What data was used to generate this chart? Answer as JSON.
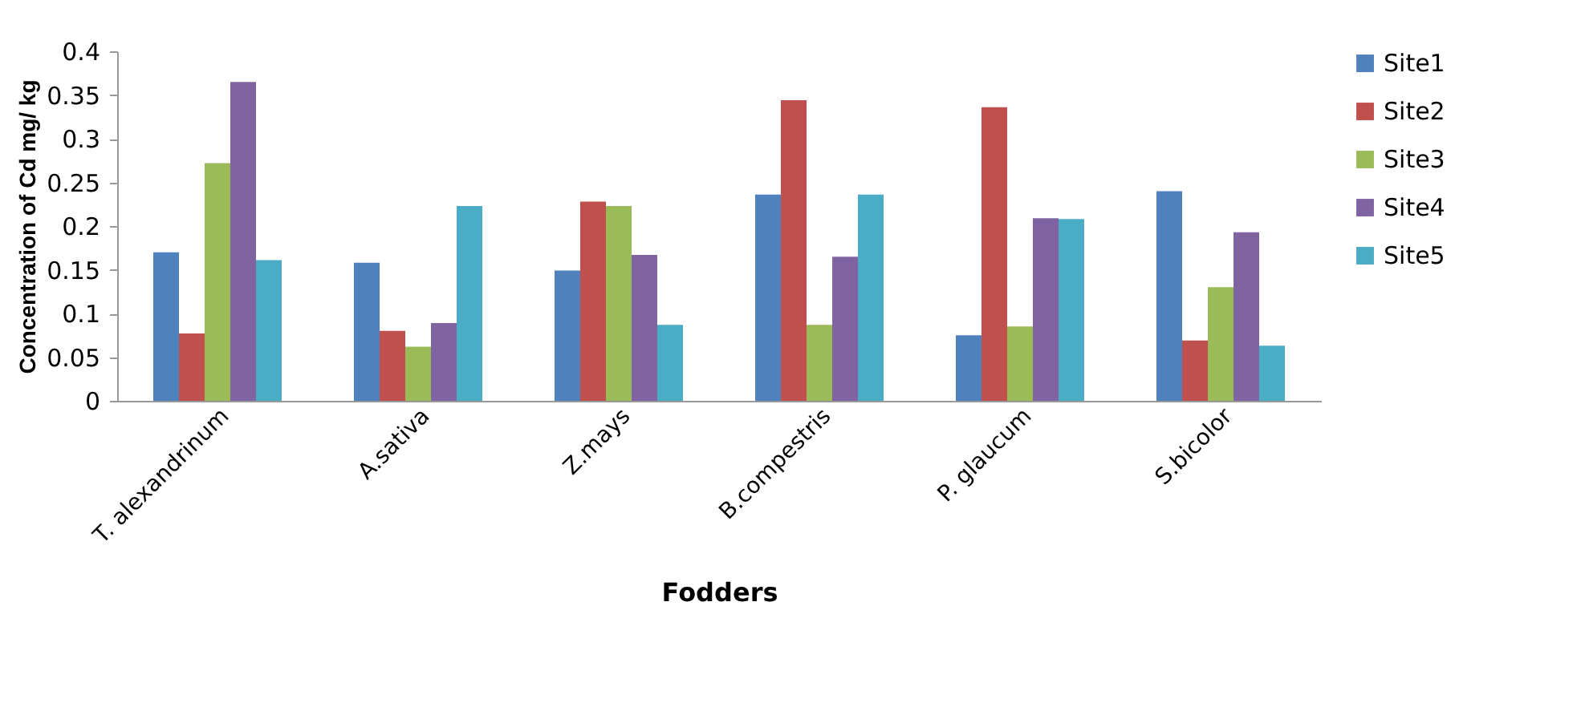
{
  "chart_data": {
    "type": "bar",
    "xlabel": "Fodders",
    "ylabel": "Concentration of Cd mg/ kg",
    "categories": [
      "T. alexandrinum",
      "A.sativa",
      "Z.mays",
      "B.compestris",
      "P. glaucum",
      "S.bicolor"
    ],
    "series": [
      {
        "name": "Site1",
        "color": "#4f81bd",
        "values": [
          0.17,
          0.158,
          0.149,
          0.236,
          0.075,
          0.24
        ]
      },
      {
        "name": "Site2",
        "color": "#c0504d",
        "values": [
          0.077,
          0.08,
          0.228,
          0.344,
          0.336,
          0.069
        ]
      },
      {
        "name": "Site3",
        "color": "#9bbb59",
        "values": [
          0.272,
          0.062,
          0.223,
          0.087,
          0.085,
          0.13
        ]
      },
      {
        "name": "Site4",
        "color": "#8064a2",
        "values": [
          0.365,
          0.089,
          0.167,
          0.165,
          0.209,
          0.193
        ]
      },
      {
        "name": "Site5",
        "color": "#4bacc6",
        "values": [
          0.161,
          0.223,
          0.087,
          0.236,
          0.208,
          0.063
        ]
      }
    ],
    "ylim": [
      0,
      0.4
    ],
    "yticks": [
      0,
      0.05,
      0.1,
      0.15,
      0.2,
      0.25,
      0.3,
      0.35,
      0.4
    ],
    "grid": false,
    "legend": "right"
  }
}
